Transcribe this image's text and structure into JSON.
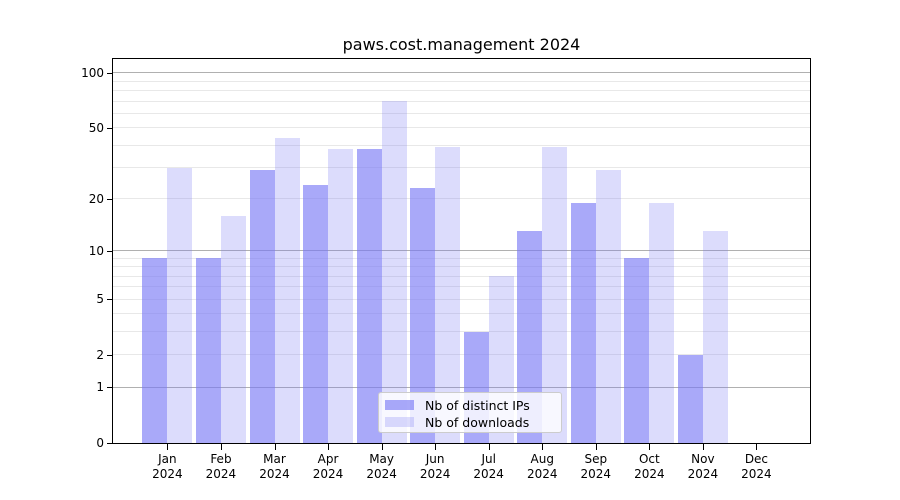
{
  "chart_data": {
    "type": "bar",
    "title": "paws.cost.management 2024",
    "x_tick_year": "2024",
    "categories": [
      "Jan",
      "Feb",
      "Mar",
      "Apr",
      "May",
      "Jun",
      "Jul",
      "Aug",
      "Sep",
      "Oct",
      "Nov",
      "Dec"
    ],
    "series": [
      {
        "name": "Nb of distinct IPs",
        "values": [
          9,
          9,
          29,
          24,
          38,
          23,
          3,
          13,
          19,
          9,
          2,
          0
        ],
        "color": "rgba(119,119,245,0.63)",
        "solid_color_hex": "#a9a9f7"
      },
      {
        "name": "Nb of downloads",
        "values": [
          30,
          16,
          44,
          38,
          70,
          39,
          7,
          39,
          29,
          19,
          13,
          0
        ],
        "color": "rgba(119,119,245,0.26)",
        "solid_color_hex": "#dadaf8"
      }
    ],
    "yscale": "log1p",
    "ylim": [
      0,
      119
    ],
    "ytick_labels": [
      0,
      1,
      2,
      5,
      10,
      20,
      50,
      100
    ],
    "major_gridlines": [
      1,
      10,
      100
    ],
    "minor_gridlines": [
      2,
      3,
      4,
      5,
      6,
      7,
      8,
      9,
      20,
      30,
      40,
      50,
      60,
      70,
      80,
      90
    ],
    "grid": true,
    "legend_position": "lower center",
    "axis_color": "#000000",
    "major_grid_color": "#b0b0b0",
    "minor_grid_color": "#e8e8e8",
    "xlabel": "",
    "ylabel": ""
  }
}
